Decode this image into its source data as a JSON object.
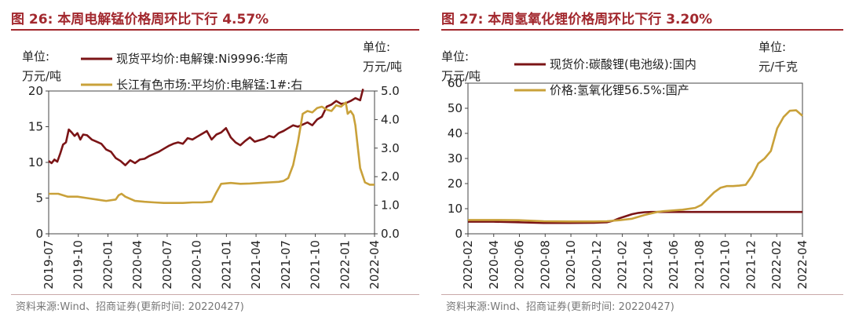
{
  "left": {
    "title": "图 26:  本周电解锰价格周环比下行 4.57%",
    "source": "资料来源:Wind、招商证券(更新时间: 20220427)",
    "unit_left": [
      "单位:",
      "万元/吨"
    ],
    "unit_right": [
      "单位:",
      "万元/吨"
    ]
  },
  "right": {
    "title": "图 27:  本周氢氧化锂价格周环比下行 3.20%",
    "source": "资料来源:Wind、招商证券(更新时间: 20220427)",
    "unit_left": [
      "单位:",
      "万元/吨"
    ],
    "unit_right": [
      "单位:",
      "元/千克"
    ]
  },
  "colors": {
    "dark_red": "#7b1416",
    "gold": "#c9a13a",
    "title_red": "#a2282e"
  },
  "chart_data": [
    {
      "type": "line",
      "x_ticks": [
        "2019-07",
        "2019-10",
        "2020-01",
        "2020-04",
        "2020-07",
        "2020-10",
        "2021-01",
        "2021-04",
        "2021-07",
        "2021-10",
        "2022-01",
        "2022-04"
      ],
      "y_left_ticks": [
        "0",
        "5",
        "10",
        "15",
        "20"
      ],
      "y_right_ticks": [
        "0.0",
        "1.0",
        "2.0",
        "3.0",
        "4.0",
        "5.0"
      ],
      "ylim_left": [
        0,
        20
      ],
      "ylim_right": [
        0,
        5
      ],
      "x_range": [
        0,
        34
      ],
      "series": [
        {
          "name": "现货平均价:电解镍:Ni9996:华南",
          "axis": "left",
          "color": "#7b1416",
          "x": [
            0,
            0.3,
            0.6,
            0.9,
            1.2,
            1.5,
            1.8,
            2.1,
            2.4,
            2.7,
            3,
            3.3,
            3.6,
            4,
            4.5,
            5,
            5.5,
            6,
            6.5,
            7,
            7.5,
            8,
            8.5,
            9,
            9.5,
            10,
            10.5,
            11,
            11.5,
            12,
            12.5,
            13,
            13.5,
            14,
            14.5,
            15,
            15.5,
            16,
            16.5,
            17,
            17.5,
            18,
            18.5,
            19,
            19.5,
            20,
            20.5,
            21,
            21.5,
            22,
            22.5,
            23,
            23.5,
            24,
            24.5,
            25,
            25.5,
            26,
            26.5,
            27,
            27.5,
            28,
            28.5,
            29,
            29.5,
            30,
            30.5,
            31,
            31.5,
            32,
            32.5,
            32.8
          ],
          "values": [
            10.2,
            9.9,
            10.4,
            10.1,
            11.2,
            12.5,
            12.8,
            14.6,
            14.2,
            13.7,
            14.1,
            13.2,
            13.9,
            13.8,
            13.2,
            12.9,
            12.6,
            11.8,
            11.5,
            10.6,
            10.2,
            9.6,
            10.3,
            9.9,
            10.4,
            10.5,
            10.9,
            11.2,
            11.5,
            11.9,
            12.3,
            12.6,
            12.8,
            12.6,
            13.4,
            13.2,
            13.6,
            14.0,
            14.4,
            13.2,
            13.9,
            14.2,
            14.8,
            13.5,
            12.8,
            12.4,
            13.0,
            13.5,
            12.9,
            13.1,
            13.3,
            13.7,
            13.5,
            14.1,
            14.4,
            14.8,
            15.2,
            15.0,
            15.3,
            15.6,
            15.2,
            16.0,
            16.4,
            17.8,
            18.1,
            18.6,
            18.2,
            18.3,
            18.6,
            19.0,
            18.7,
            20.3
          ]
        },
        {
          "name": "长江有色市场:平均价:电解锰:1#:右",
          "axis": "right",
          "color": "#c9a13a",
          "x": [
            0,
            1,
            2,
            3,
            4,
            5,
            6,
            7,
            7.3,
            7.6,
            8,
            9,
            10,
            11,
            12,
            13,
            14,
            15,
            16,
            17,
            17.5,
            18,
            19,
            20,
            21,
            22,
            23,
            24,
            24.5,
            25,
            25.5,
            26,
            26.5,
            27,
            27.5,
            28,
            28.5,
            29,
            29.5,
            30,
            30.5,
            31,
            31.2,
            31.5,
            31.8,
            32,
            32.2,
            32.5,
            33,
            33.5,
            34
          ],
          "values": [
            1.4,
            1.4,
            1.3,
            1.3,
            1.25,
            1.2,
            1.15,
            1.2,
            1.35,
            1.4,
            1.3,
            1.15,
            1.12,
            1.1,
            1.08,
            1.08,
            1.08,
            1.1,
            1.1,
            1.12,
            1.45,
            1.75,
            1.78,
            1.75,
            1.76,
            1.78,
            1.8,
            1.82,
            1.85,
            1.95,
            2.4,
            3.2,
            4.2,
            4.3,
            4.25,
            4.4,
            4.45,
            4.35,
            4.3,
            4.5,
            4.45,
            4.6,
            4.2,
            4.3,
            4.15,
            3.8,
            3.2,
            2.3,
            1.8,
            1.72,
            1.72
          ]
        }
      ]
    },
    {
      "type": "line",
      "x_ticks": [
        "2020-02",
        "2020-04",
        "2020-06",
        "2020-08",
        "2020-10",
        "2020-12",
        "2021-02",
        "2021-04",
        "2021-06",
        "2021-08",
        "2021-10",
        "2021-12",
        "2022-02",
        "2022-04"
      ],
      "y_left_ticks": [
        "0",
        "10",
        "20",
        "30",
        "40",
        "50",
        "60"
      ],
      "ylim_left": [
        0,
        60
      ],
      "x_range": [
        0,
        26.5
      ],
      "series": [
        {
          "name": "现货价:碳酸锂(电池级):国内",
          "axis": "left",
          "color": "#7b1416",
          "x": [
            0,
            2,
            4,
            6,
            8,
            10,
            11,
            11.5,
            12,
            12.5,
            13,
            13.5,
            14,
            14.5,
            15,
            16,
            18,
            20,
            22,
            24,
            26.5
          ],
          "values": [
            4.8,
            4.8,
            4.6,
            4.3,
            4.3,
            4.4,
            4.6,
            5.2,
            6.2,
            7.0,
            7.8,
            8.3,
            8.6,
            8.7,
            8.7,
            8.7,
            8.7,
            8.7,
            8.7,
            8.7,
            8.7
          ]
        },
        {
          "name": "价格:氢氧化锂56.5%:国产",
          "axis": "left",
          "color": "#c9a13a",
          "x": [
            0,
            2,
            4,
            6,
            8,
            10,
            11,
            12,
            13,
            14,
            15,
            15.5,
            16,
            17,
            18,
            18.5,
            19,
            19.5,
            20,
            20.5,
            21,
            21.5,
            22,
            22.5,
            23,
            23.5,
            24,
            24.5,
            25,
            25.5,
            26,
            26.5
          ],
          "values": [
            5.5,
            5.5,
            5.4,
            5.0,
            4.9,
            4.9,
            5.0,
            5.4,
            6.0,
            7.5,
            8.7,
            9.0,
            9.2,
            9.6,
            10.3,
            11.5,
            14.0,
            16.5,
            18.3,
            19.0,
            19.0,
            19.2,
            19.5,
            23.0,
            28.0,
            30.0,
            33.0,
            42.0,
            46.5,
            49.0,
            49.2,
            47.0
          ]
        }
      ]
    }
  ]
}
